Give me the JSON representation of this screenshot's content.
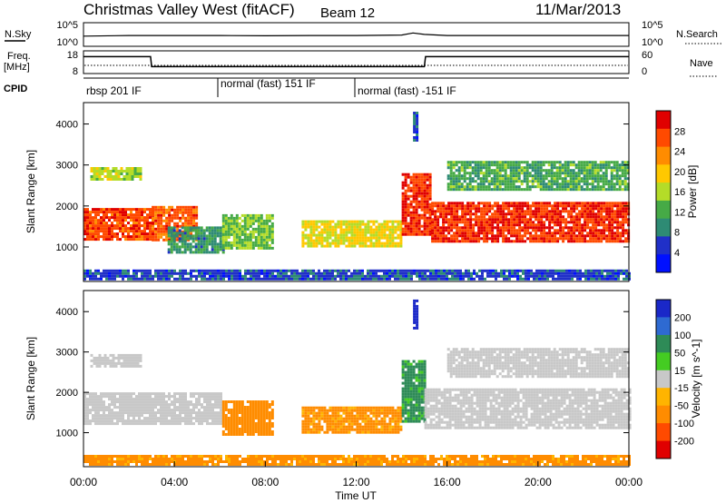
{
  "header": {
    "station": "Christmas Valley West (fitACF)",
    "beam": "Beam 12",
    "date": "11/Mar/2013"
  },
  "sky_panel": {
    "left_label": "N.Sky",
    "right_label": "N.Search",
    "left_ticks": [
      "10^5",
      "10^0"
    ],
    "right_ticks": [
      "10^5",
      "10^0"
    ]
  },
  "freq_panel": {
    "left_label_1": "Freq.",
    "left_label_2": "[MHz]",
    "right_label": "Nave",
    "left_ticks": [
      "18",
      "8"
    ],
    "right_ticks": [
      "60",
      "0"
    ]
  },
  "cpid": {
    "label": "CPID",
    "modes": [
      {
        "name": "rbsp 201 IF",
        "start_hour": 0
      },
      {
        "name": "normal (fast) 151 IF",
        "start_hour": 6
      },
      {
        "name": "normal (fast) -151 IF",
        "start_hour": 12
      }
    ]
  },
  "power_panel": {
    "ylabel": "Slant Range [km]",
    "yticks": [
      "4000",
      "3000",
      "2000",
      "1000"
    ],
    "colorbar_label": "Power [dB]",
    "colorbar_ticks": [
      "28",
      "24",
      "20",
      "16",
      "12",
      "8",
      "4"
    ],
    "colors": [
      "#e00000",
      "#ff4a00",
      "#ff8c00",
      "#ffc800",
      "#b4dc28",
      "#46aa46",
      "#2e8b74",
      "#2030c8",
      "#0010ff"
    ]
  },
  "velocity_panel": {
    "ylabel": "Slant Range [km]",
    "yticks": [
      "4000",
      "3000",
      "2000",
      "1000"
    ],
    "colorbar_label": "Velocity [m s^-1]",
    "colorbar_ticks": [
      "200",
      "100",
      "50",
      "15",
      "-15",
      "-50",
      "-100",
      "-200"
    ],
    "colors": [
      "#1a28c8",
      "#2e6ad2",
      "#2e8b57",
      "#44cc22",
      "#c8c8c8",
      "#ffb400",
      "#ff8c00",
      "#ff4a00",
      "#e00000"
    ]
  },
  "x_axis": {
    "label": "Time UT",
    "ticks": [
      "00:00",
      "04:00",
      "08:00",
      "12:00",
      "16:00",
      "20:00",
      "00:00"
    ]
  },
  "chart_data": [
    {
      "type": "line",
      "title": "",
      "xlabel": "",
      "ylabel": "N.Sky",
      "xlim": [
        0,
        24
      ],
      "yscale": "log",
      "series": [
        {
          "x": [
            0,
            2,
            4,
            6,
            8,
            10,
            12,
            14,
            14.5,
            15,
            16,
            18,
            20,
            22,
            24
          ],
          "values": [
            200,
            300,
            300,
            300,
            250,
            300,
            300,
            400,
            1500,
            600,
            300,
            300,
            300,
            300,
            300
          ]
        }
      ]
    },
    {
      "type": "line",
      "title": "",
      "xlabel": "",
      "ylabel": "Freq. [MHz]",
      "xlim": [
        0,
        24
      ],
      "ylim": [
        8,
        18
      ],
      "series": [
        {
          "x": [
            0,
            2.95,
            3.0,
            15.0,
            15.05,
            24
          ],
          "values": [
            16,
            16,
            11,
            11,
            16,
            16
          ]
        }
      ]
    },
    {
      "type": "heatmap",
      "title": "",
      "xlabel": "Time UT",
      "ylabel": "Slant Range [km]",
      "xlim": [
        0,
        24
      ],
      "ylim": [
        180,
        4500
      ],
      "colorbar": "Power [dB]",
      "regions": [
        {
          "start_hour": 0.0,
          "end_hour": 3.0,
          "range_min_km": 1200,
          "range_max_km": 1950,
          "level_db": 27
        },
        {
          "start_hour": 0.3,
          "end_hour": 2.5,
          "range_min_km": 2650,
          "range_max_km": 2950,
          "level_db": 16
        },
        {
          "start_hour": 3.0,
          "end_hour": 5.0,
          "range_min_km": 1200,
          "range_max_km": 2000,
          "level_db": 26
        },
        {
          "start_hour": 3.7,
          "end_hour": 6.1,
          "range_min_km": 850,
          "range_max_km": 1500,
          "level_db": 10
        },
        {
          "start_hour": 6.1,
          "end_hour": 8.3,
          "range_min_km": 1000,
          "range_max_km": 1800,
          "level_db": 14
        },
        {
          "start_hour": 9.6,
          "end_hour": 14.0,
          "range_min_km": 1000,
          "range_max_km": 1650,
          "level_db": 18
        },
        {
          "start_hour": 14.0,
          "end_hour": 15.3,
          "range_min_km": 1300,
          "range_max_km": 2800,
          "level_db": 28
        },
        {
          "start_hour": 14.5,
          "end_hour": 14.7,
          "range_min_km": 3600,
          "range_max_km": 4300,
          "level_db": 6
        },
        {
          "start_hour": 15.3,
          "end_hour": 24.0,
          "range_min_km": 1150,
          "range_max_km": 2100,
          "level_db": 28
        },
        {
          "start_hour": 16.0,
          "end_hour": 24.0,
          "range_min_km": 2400,
          "range_max_km": 3100,
          "level_db": 12
        },
        {
          "start_hour": 0.0,
          "end_hour": 24.0,
          "range_min_km": 200,
          "range_max_km": 450,
          "level_db": 6
        }
      ]
    },
    {
      "type": "heatmap",
      "title": "",
      "xlabel": "Time UT",
      "ylabel": "Slant Range [km]",
      "xlim": [
        0,
        24
      ],
      "ylim": [
        180,
        4500
      ],
      "colorbar": "Velocity [m s^-1]",
      "regions": [
        {
          "start_hour": 0.0,
          "end_hour": 6.0,
          "range_min_km": 1200,
          "range_max_km": 2000,
          "velocity": 0
        },
        {
          "start_hour": 0.3,
          "end_hour": 2.5,
          "range_min_km": 2650,
          "range_max_km": 2950,
          "velocity": 0
        },
        {
          "start_hour": 6.1,
          "end_hour": 8.3,
          "range_min_km": 950,
          "range_max_km": 1800,
          "velocity": -70
        },
        {
          "start_hour": 9.6,
          "end_hour": 14.0,
          "range_min_km": 1000,
          "range_max_km": 1650,
          "velocity": -60
        },
        {
          "start_hour": 14.0,
          "end_hour": 15.0,
          "range_min_km": 1300,
          "range_max_km": 2800,
          "velocity": 40
        },
        {
          "start_hour": 14.5,
          "end_hour": 14.7,
          "range_min_km": 3600,
          "range_max_km": 4300,
          "velocity": 200
        },
        {
          "start_hour": 15.0,
          "end_hour": 24.0,
          "range_min_km": 1150,
          "range_max_km": 2100,
          "velocity": 0
        },
        {
          "start_hour": 16.0,
          "end_hour": 24.0,
          "range_min_km": 2400,
          "range_max_km": 3100,
          "velocity": 0
        },
        {
          "start_hour": 0.0,
          "end_hour": 24.0,
          "range_min_km": 200,
          "range_max_km": 450,
          "velocity": -60
        }
      ]
    }
  ]
}
